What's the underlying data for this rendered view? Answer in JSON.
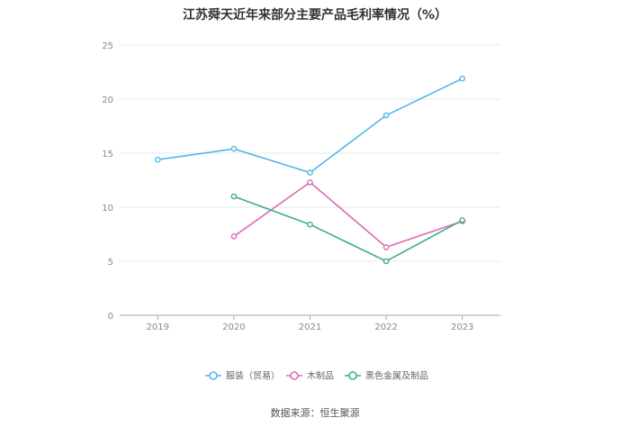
{
  "chart_data": {
    "type": "line",
    "title": "江苏舜天近年来部分主要产品毛利率情况（%）",
    "x": [
      "2019",
      "2020",
      "2021",
      "2022",
      "2023"
    ],
    "ylim": [
      0,
      25
    ],
    "yticks": [
      "0",
      "5",
      "10",
      "15",
      "20",
      "25"
    ],
    "grid": true,
    "legend_position": "bottom",
    "series": [
      {
        "name": "服装（贸易）",
        "color": "#4db8ea",
        "values": [
          14.4,
          15.4,
          13.2,
          18.5,
          21.9
        ]
      },
      {
        "name": "木制品",
        "color": "#e066b8",
        "values": [
          null,
          7.3,
          12.3,
          6.3,
          8.7
        ]
      },
      {
        "name": "黑色金属及制品",
        "color": "#3dae8c",
        "values": [
          null,
          11.0,
          8.4,
          5.0,
          8.8
        ]
      }
    ]
  },
  "source": "数据来源：恒生聚源"
}
